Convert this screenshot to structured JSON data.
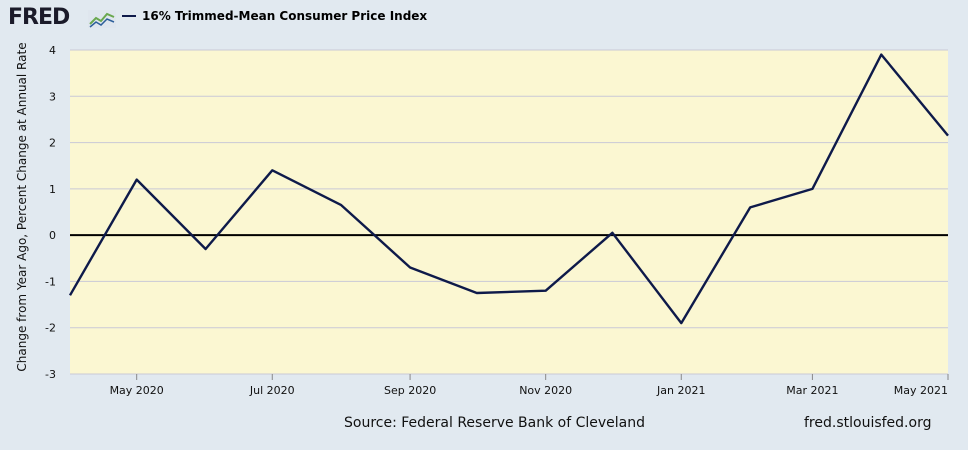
{
  "header": {
    "logo_text": "FRED",
    "legend_label": "16% Trimmed-Mean Consumer Price Index"
  },
  "footer": {
    "source": "Source: Federal Reserve Bank of Cleveland",
    "url": "fred.stlouisfed.org"
  },
  "colors": {
    "line": "#0e1a4a",
    "plot_background": "#fbf7d2",
    "page_background": "#e1e9f0"
  },
  "chart_data": {
    "type": "line",
    "title": "",
    "xlabel": "",
    "ylabel": "Change from Year Ago, Percent Change at Annual Rate",
    "x": [
      "2020-04-01",
      "2020-05-01",
      "2020-06-01",
      "2020-07-01",
      "2020-08-01",
      "2020-09-01",
      "2020-10-01",
      "2020-11-01",
      "2020-12-01",
      "2021-01-01",
      "2021-02-01",
      "2021-03-01",
      "2021-04-01",
      "2021-05-01"
    ],
    "series": [
      {
        "name": "16% Trimmed-Mean Consumer Price Index",
        "values": [
          -1.3,
          1.2,
          -0.3,
          1.4,
          0.65,
          -0.7,
          -1.25,
          -1.2,
          0.05,
          -1.9,
          0.6,
          1.0,
          3.9,
          2.15
        ]
      }
    ],
    "xlim": [
      "2020-04-01",
      "2021-05-01"
    ],
    "ylim": [
      -3,
      4
    ],
    "y_ticks": [
      4,
      3,
      2,
      1,
      0,
      -1,
      -2,
      -3
    ],
    "x_ticks": [
      {
        "date": "2020-05-01",
        "label": "May 2020"
      },
      {
        "date": "2020-07-01",
        "label": "Jul 2020"
      },
      {
        "date": "2020-09-01",
        "label": "Sep 2020"
      },
      {
        "date": "2020-11-01",
        "label": "Nov 2020"
      },
      {
        "date": "2021-01-01",
        "label": "Jan 2021"
      },
      {
        "date": "2021-03-01",
        "label": "Mar 2021"
      },
      {
        "date": "2021-05-01",
        "label": "May 2021"
      }
    ],
    "grid": true,
    "legend": "top-left"
  }
}
